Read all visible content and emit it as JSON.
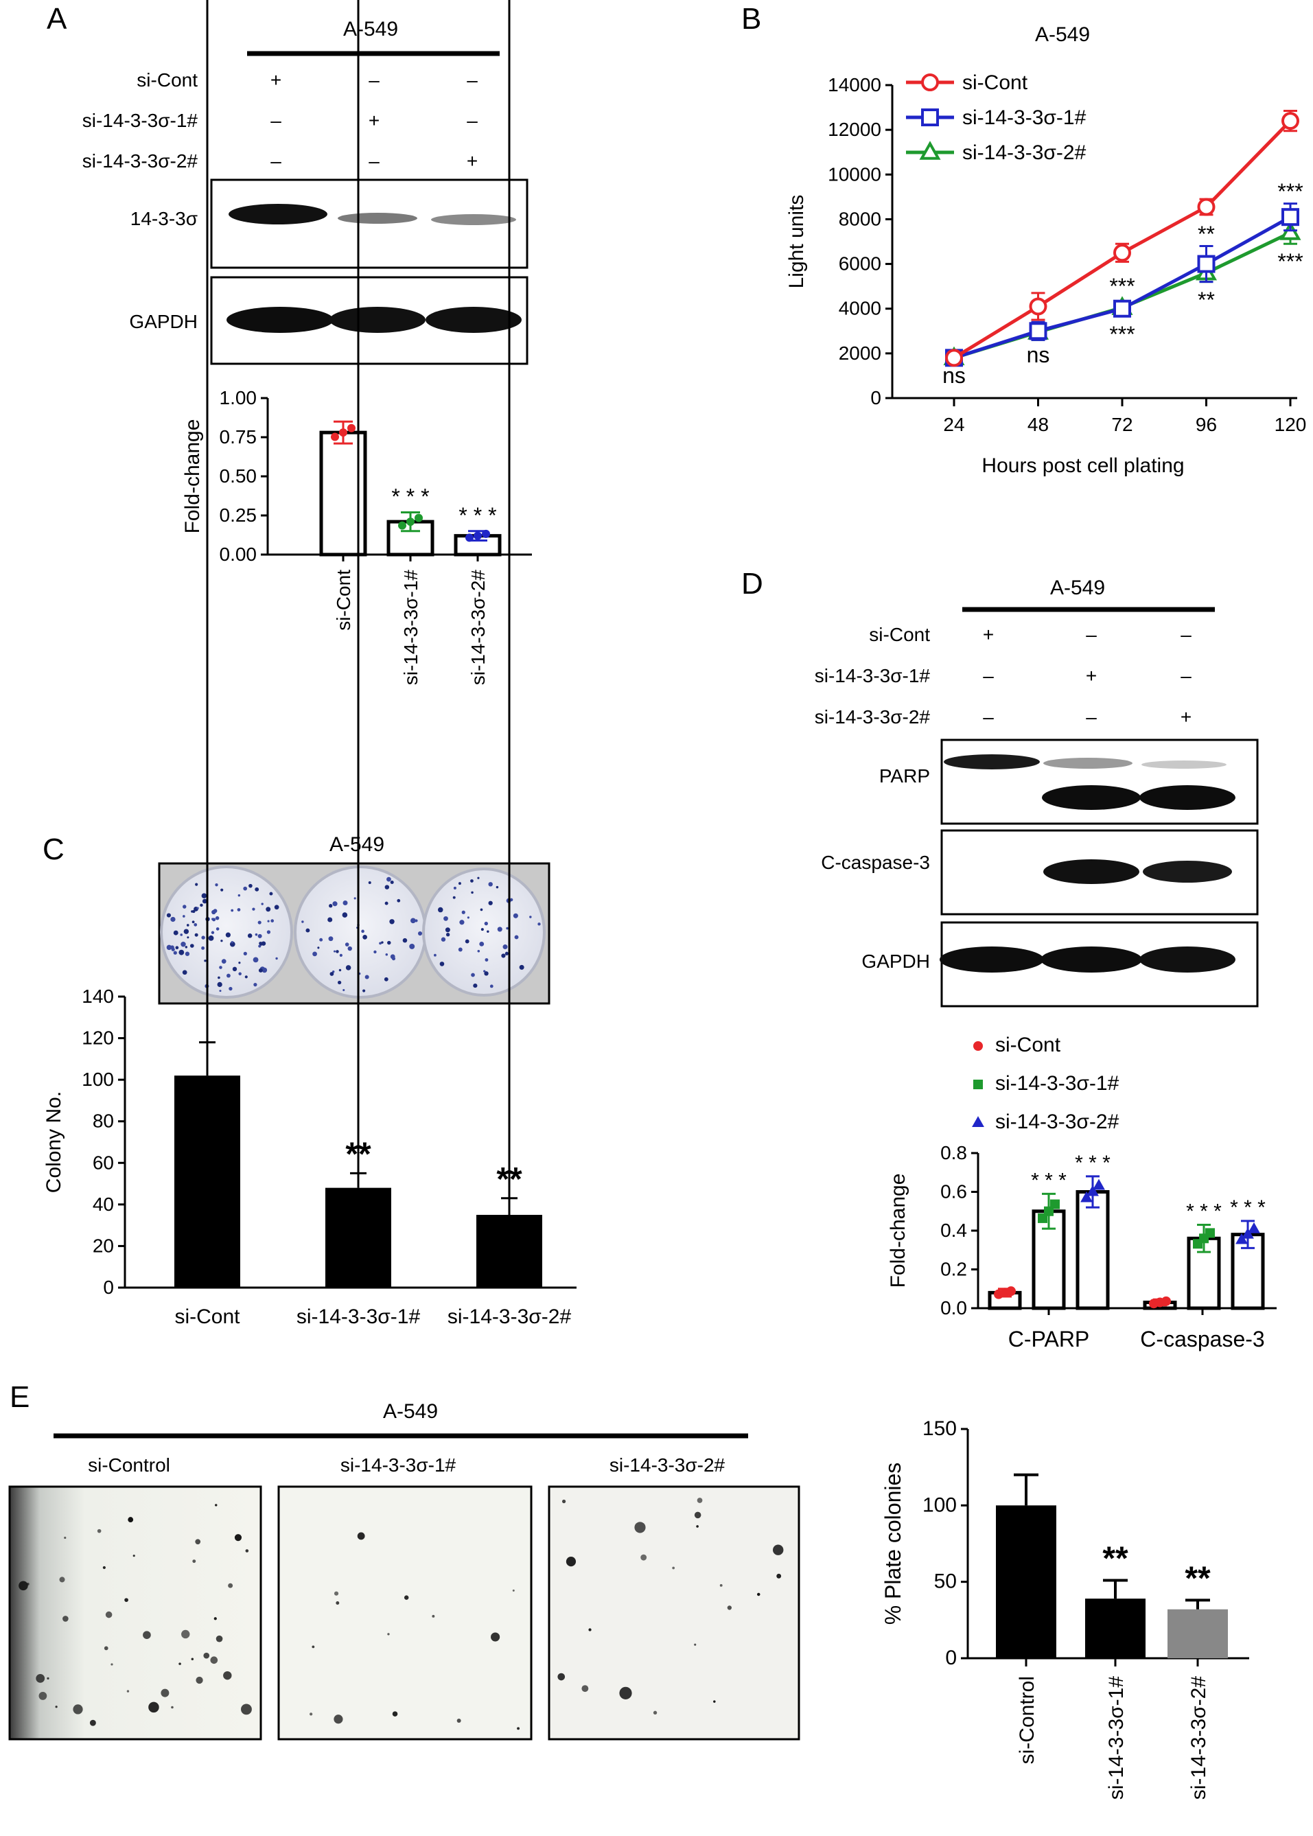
{
  "panels": {
    "A": {
      "letter": "A",
      "cell_line": "A-549",
      "rows": [
        {
          "label": "si-Cont",
          "marks": [
            "+",
            "–",
            "–"
          ]
        },
        {
          "label": "si-14-3-3σ-1#",
          "marks": [
            "–",
            "+",
            "–"
          ]
        },
        {
          "label": "si-14-3-3σ-2#",
          "marks": [
            "–",
            "–",
            "+"
          ]
        }
      ],
      "blots": [
        "14-3-3σ",
        "GAPDH"
      ]
    },
    "B": {
      "letter": "B"
    },
    "C": {
      "letter": "C",
      "cell_line": "A-549"
    },
    "D": {
      "letter": "D",
      "cell_line": "A-549",
      "rows": [
        {
          "label": "si-Cont",
          "marks": [
            "+",
            "–",
            "–"
          ]
        },
        {
          "label": "si-14-3-3σ-1#",
          "marks": [
            "–",
            "+",
            "–"
          ]
        },
        {
          "label": "si-14-3-3σ-2#",
          "marks": [
            "–",
            "–",
            "+"
          ]
        }
      ],
      "blots": [
        "PARP",
        "C-caspase-3",
        "GAPDH"
      ]
    },
    "E": {
      "letter": "E",
      "cell_line": "A-549",
      "image_labels": [
        "si-Control",
        "si-14-3-3σ-1#",
        "si-14-3-3σ-2#"
      ]
    }
  },
  "colors": {
    "red": "#e8262a",
    "green": "#1e9a2e",
    "blue": "#2026c8",
    "gray": "#888888",
    "black": "#000000"
  },
  "chart_data": [
    {
      "id": "A",
      "type": "bar",
      "categories": [
        "si-Cont",
        "si-14-3-3σ-1#",
        "si-14-3-3σ-2#"
      ],
      "values": [
        0.78,
        0.21,
        0.12
      ],
      "errors": [
        0.07,
        0.06,
        0.03
      ],
      "dot_colors": [
        "#e8262a",
        "#1e9a2e",
        "#2026c8"
      ],
      "significance": [
        "",
        "* * *",
        "* * *"
      ],
      "ylabel": "Fold-change",
      "ylim": [
        0,
        1.0
      ],
      "yticks": [
        "0.00",
        "0.25",
        "0.50",
        "0.75",
        "1.00"
      ]
    },
    {
      "id": "B",
      "type": "line",
      "title": "A-549",
      "x": [
        24,
        48,
        72,
        96,
        120
      ],
      "series": [
        {
          "name": "si-Cont",
          "color": "#e8262a",
          "marker": "circle",
          "values": [
            1800,
            4100,
            6500,
            8550,
            12400
          ],
          "errors": [
            150,
            600,
            400,
            350,
            450
          ]
        },
        {
          "name": "si-14-3-3σ-1#",
          "color": "#2026c8",
          "marker": "square",
          "values": [
            1800,
            3000,
            4000,
            6000,
            8100
          ],
          "errors": [
            150,
            400,
            250,
            800,
            600
          ]
        },
        {
          "name": "si-14-3-3σ-2#",
          "color": "#1e9a2e",
          "marker": "triangle",
          "values": [
            1800,
            2950,
            4050,
            5600,
            7400
          ],
          "errors": [
            150,
            350,
            250,
            400,
            500
          ]
        }
      ],
      "annotations": [
        {
          "x": 24,
          "text": "ns",
          "where": "below"
        },
        {
          "x": 48,
          "text": "ns",
          "where": "below"
        },
        {
          "x": 72,
          "text": "***",
          "where": "above"
        },
        {
          "x": 72,
          "text": "***",
          "where": "below"
        },
        {
          "x": 96,
          "text": "**",
          "where": "above"
        },
        {
          "x": 96,
          "text": "**",
          "where": "below"
        },
        {
          "x": 120,
          "text": "***",
          "where": "above"
        },
        {
          "x": 120,
          "text": "***",
          "where": "below"
        }
      ],
      "xlabel": "Hours post cell plating",
      "ylabel": "Light units",
      "ylim": [
        0,
        14000
      ],
      "yticks": [
        "0",
        "2000",
        "4000",
        "6000",
        "8000",
        "10000",
        "12000",
        "14000"
      ],
      "legend": "top-left"
    },
    {
      "id": "C",
      "type": "bar",
      "categories": [
        "si-Cont",
        "si-14-3-3σ-1#",
        "si-14-3-3σ-2#"
      ],
      "values": [
        102,
        48,
        35
      ],
      "errors": [
        16,
        7,
        8
      ],
      "significance": [
        "",
        "**",
        "**"
      ],
      "ylabel": "Colony No.",
      "ylim": [
        0,
        140
      ],
      "yticks": [
        "0",
        "20",
        "40",
        "60",
        "80",
        "100",
        "120",
        "140"
      ]
    },
    {
      "id": "D",
      "type": "bar",
      "categories": [
        "C-PARP",
        "C-caspase-3"
      ],
      "series": [
        {
          "name": "si-Cont",
          "color": "#e8262a",
          "marker": "circle",
          "values": [
            0.08,
            0.03
          ],
          "errors": [
            0.02,
            0.015
          ]
        },
        {
          "name": "si-14-3-3σ-1#",
          "color": "#1e9a2e",
          "marker": "square",
          "values": [
            0.5,
            0.36
          ],
          "errors": [
            0.09,
            0.07
          ]
        },
        {
          "name": "si-14-3-3σ-2#",
          "color": "#2026c8",
          "marker": "triangle",
          "values": [
            0.6,
            0.38
          ],
          "errors": [
            0.08,
            0.07
          ]
        }
      ],
      "significance": [
        [
          "",
          "* * *",
          "* * *"
        ],
        [
          "",
          "* * *",
          "* * *"
        ]
      ],
      "ylabel": "Fold-change",
      "ylim": [
        0,
        0.8
      ],
      "yticks": [
        "0.0",
        "0.2",
        "0.4",
        "0.6",
        "0.8"
      ],
      "legend": "top-left"
    },
    {
      "id": "E",
      "type": "bar",
      "categories": [
        "si-Control",
        "si-14-3-3σ-1#",
        "si-14-3-3σ-2#"
      ],
      "values": [
        100,
        39,
        32
      ],
      "errors": [
        20,
        12,
        6
      ],
      "bar_colors": [
        "#000000",
        "#000000",
        "#888888"
      ],
      "significance": [
        "",
        "**",
        "**"
      ],
      "ylabel": "% Plate colonies",
      "ylim": [
        0,
        150
      ],
      "yticks": [
        "0",
        "50",
        "100",
        "150"
      ]
    }
  ]
}
